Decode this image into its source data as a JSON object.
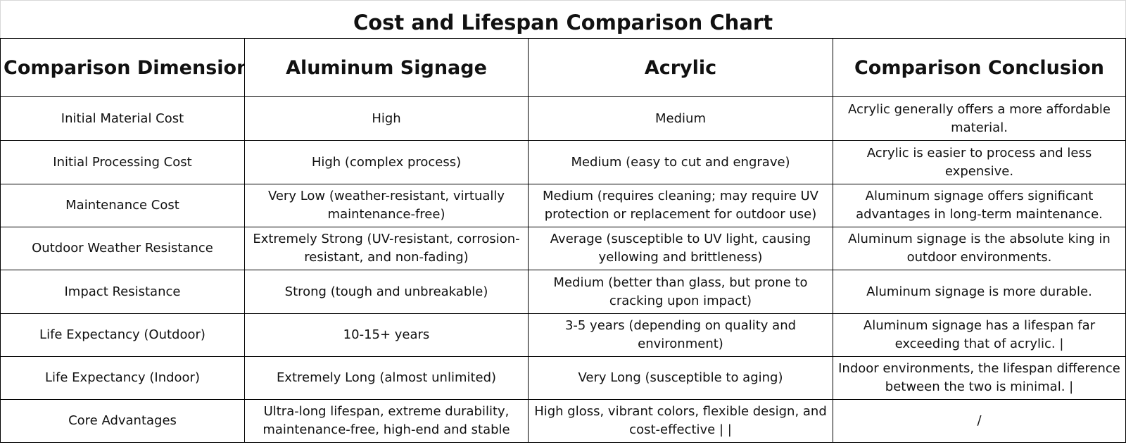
{
  "title": "Cost and Lifespan Comparison Chart",
  "headers": [
    "Comparison Dimensions",
    "Aluminum Signage",
    "Acrylic",
    "Comparison Conclusion"
  ],
  "rows": [
    [
      "Initial Material Cost",
      "High",
      "Medium",
      "Acrylic generally offers a more affordable material."
    ],
    [
      "Initial Processing Cost",
      "High (complex process)",
      "Medium (easy to cut and engrave)",
      "Acrylic is easier to process and less expensive."
    ],
    [
      "Maintenance Cost",
      "Very Low (weather-resistant, virtually maintenance-free)",
      "Medium (requires cleaning; may require UV protection or replacement for outdoor use)",
      "Aluminum signage offers significant advantages in long-term maintenance."
    ],
    [
      "Outdoor Weather Resistance",
      "Extremely Strong (UV-resistant, corrosion-resistant, and non-fading)",
      "Average (susceptible to UV light, causing yellowing and brittleness)",
      "Aluminum signage is the absolute king in outdoor environments."
    ],
    [
      "Impact Resistance",
      "Strong (tough and unbreakable)",
      "Medium (better than glass, but prone to cracking upon impact)",
      "Aluminum signage is more durable."
    ],
    [
      "Life Expectancy (Outdoor)",
      "10-15+ years",
      "3-5 years (depending on quality and environment)",
      "Aluminum signage has a lifespan far exceeding that of acrylic. |"
    ],
    [
      "Life Expectancy (Indoor)",
      "Extremely Long (almost unlimited)",
      "Very Long (susceptible to aging)",
      "Indoor environments, the lifespan difference between the two is minimal. |"
    ],
    [
      "Core Advantages",
      "Ultra-long lifespan, extreme durability, maintenance-free, high-end and stable",
      "High gloss, vibrant colors, flexible design, and cost-effective | |",
      "/"
    ]
  ]
}
